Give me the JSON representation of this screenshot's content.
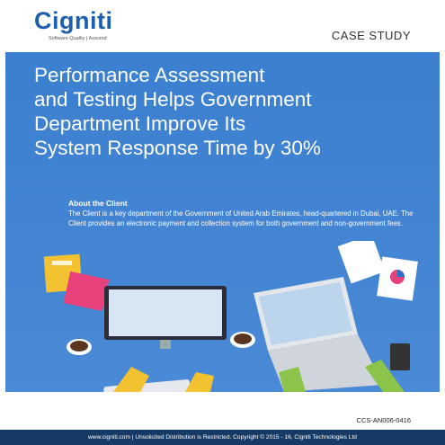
{
  "header": {
    "logo": "Cigniti",
    "tagline": "Software Quality | Assured",
    "label": "CASE STUDY"
  },
  "title": {
    "lines": [
      "Performance Assessment",
      "and Testing Helps Government",
      "Department Improve Its",
      "System Response Time by 30%"
    ]
  },
  "about": {
    "heading": "About the Client",
    "text": "The Client is a key department of the Government of United Arab Emirates, head-quartered in Dubai, UAE. The Client provides an electronic payment and collection system for both government and non-government fees."
  },
  "document_code": "CCS-AN006-0416",
  "footer": {
    "text": "www.cigniti.com  |  Unsolicited Distribution is Restricted. Copyright © 2015 - 16, Cigniti Technologies Ltd"
  }
}
